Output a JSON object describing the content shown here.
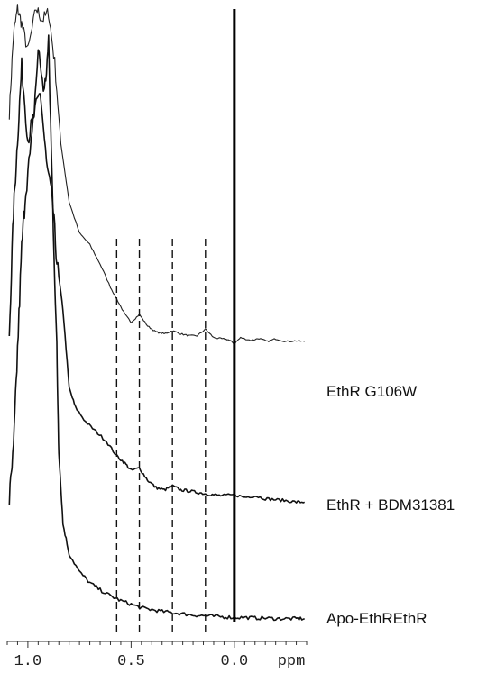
{
  "chart_data": {
    "type": "line",
    "title": "",
    "xlabel": "ppm",
    "ylabel": "",
    "x_axis": {
      "reversed": true,
      "xlim": [
        1.1,
        -0.35
      ],
      "ticks": [
        1.0,
        0.5,
        0.0
      ],
      "tick_labels": [
        "1.0",
        "0.5",
        "0.0"
      ],
      "unit": "ppm"
    },
    "grid": false,
    "legend": "none",
    "reference_lines": {
      "dashed_ppm": [
        0.57,
        0.46,
        0.3,
        0.14
      ],
      "solid_ppm": [
        0.0
      ]
    },
    "series": [
      {
        "name": "EthR G106W",
        "color": "#222222",
        "points": [
          [
            1.09,
            0.72
          ],
          [
            1.07,
            0.92
          ],
          [
            1.05,
            0.99
          ],
          [
            1.03,
            0.95
          ],
          [
            1.0,
            0.88
          ],
          [
            0.96,
            0.99
          ],
          [
            0.93,
            0.96
          ],
          [
            0.9,
            0.98
          ],
          [
            0.87,
            0.85
          ],
          [
            0.84,
            0.64
          ],
          [
            0.8,
            0.49
          ],
          [
            0.75,
            0.41
          ],
          [
            0.7,
            0.38
          ],
          [
            0.65,
            0.33
          ],
          [
            0.6,
            0.27
          ],
          [
            0.57,
            0.24
          ],
          [
            0.53,
            0.2
          ],
          [
            0.5,
            0.18
          ],
          [
            0.46,
            0.2
          ],
          [
            0.42,
            0.17
          ],
          [
            0.38,
            0.155
          ],
          [
            0.34,
            0.15
          ],
          [
            0.3,
            0.158
          ],
          [
            0.26,
            0.15
          ],
          [
            0.22,
            0.145
          ],
          [
            0.18,
            0.145
          ],
          [
            0.14,
            0.162
          ],
          [
            0.1,
            0.14
          ],
          [
            0.06,
            0.137
          ],
          [
            0.03,
            0.135
          ],
          [
            0.0,
            0.125
          ],
          [
            -0.03,
            0.14
          ],
          [
            -0.08,
            0.133
          ],
          [
            -0.12,
            0.138
          ],
          [
            -0.16,
            0.13
          ],
          [
            -0.2,
            0.137
          ],
          [
            -0.25,
            0.13
          ],
          [
            -0.3,
            0.132
          ],
          [
            -0.34,
            0.13
          ]
        ]
      },
      {
        "name": "EthR + BDM31381",
        "color": "#111111",
        "points": [
          [
            1.09,
            0.35
          ],
          [
            1.07,
            0.6
          ],
          [
            1.05,
            0.75
          ],
          [
            1.03,
            0.9
          ],
          [
            1.0,
            0.75
          ],
          [
            0.97,
            0.8
          ],
          [
            0.94,
            0.85
          ],
          [
            0.91,
            0.7
          ],
          [
            0.88,
            0.62
          ],
          [
            0.86,
            0.5
          ],
          [
            0.83,
            0.4
          ],
          [
            0.8,
            0.24
          ],
          [
            0.77,
            0.2
          ],
          [
            0.72,
            0.17
          ],
          [
            0.67,
            0.15
          ],
          [
            0.62,
            0.13
          ],
          [
            0.57,
            0.1
          ],
          [
            0.53,
            0.085
          ],
          [
            0.5,
            0.07
          ],
          [
            0.46,
            0.075
          ],
          [
            0.42,
            0.05
          ],
          [
            0.38,
            0.035
          ],
          [
            0.34,
            0.03
          ],
          [
            0.3,
            0.038
          ],
          [
            0.26,
            0.03
          ],
          [
            0.22,
            0.028
          ],
          [
            0.18,
            0.025
          ],
          [
            0.14,
            0.022
          ],
          [
            0.1,
            0.02
          ],
          [
            0.06,
            0.018
          ],
          [
            0.0,
            0.02
          ],
          [
            -0.05,
            0.015
          ],
          [
            -0.1,
            0.018
          ],
          [
            -0.15,
            0.012
          ],
          [
            -0.2,
            0.01
          ],
          [
            -0.25,
            0.008
          ],
          [
            -0.3,
            0.005
          ],
          [
            -0.34,
            0.005
          ]
        ]
      },
      {
        "name": "Apo-EthREthR",
        "color": "#111111",
        "points": [
          [
            1.09,
            0.2
          ],
          [
            1.07,
            0.28
          ],
          [
            1.05,
            0.45
          ],
          [
            1.03,
            0.62
          ],
          [
            1.01,
            0.72
          ],
          [
            0.98,
            0.8
          ],
          [
            0.95,
            0.95
          ],
          [
            0.92,
            0.88
          ],
          [
            0.9,
            0.96
          ],
          [
            0.88,
            0.7
          ],
          [
            0.86,
            0.45
          ],
          [
            0.85,
            0.28
          ],
          [
            0.83,
            0.16
          ],
          [
            0.8,
            0.11
          ],
          [
            0.75,
            0.08
          ],
          [
            0.7,
            0.062
          ],
          [
            0.65,
            0.05
          ],
          [
            0.6,
            0.04
          ],
          [
            0.55,
            0.032
          ],
          [
            0.5,
            0.026
          ],
          [
            0.45,
            0.02
          ],
          [
            0.4,
            0.017
          ],
          [
            0.35,
            0.014
          ],
          [
            0.3,
            0.012
          ],
          [
            0.25,
            0.01
          ],
          [
            0.2,
            0.008
          ],
          [
            0.15,
            0.007
          ],
          [
            0.1,
            0.006
          ],
          [
            0.05,
            0.005
          ],
          [
            0.0,
            0.004
          ],
          [
            -0.05,
            0.004
          ],
          [
            -0.1,
            0.003
          ],
          [
            -0.15,
            0.003
          ],
          [
            -0.2,
            0.002
          ],
          [
            -0.25,
            0.002
          ],
          [
            -0.3,
            0.002
          ],
          [
            -0.34,
            0.002
          ]
        ]
      }
    ]
  }
}
